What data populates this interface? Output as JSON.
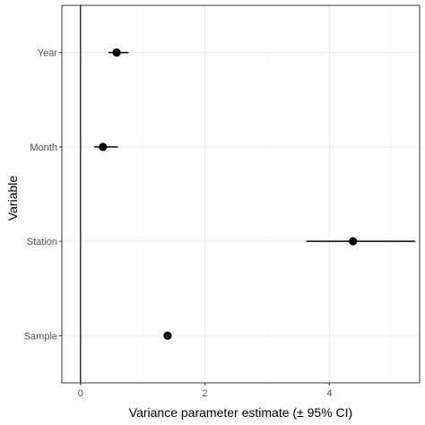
{
  "chart_data": {
    "type": "scatter",
    "subtype": "dot-and-whisker",
    "title": "",
    "xlabel": "Variance parameter estimate (± 95% CI)",
    "ylabel": "Variable",
    "xlim": [
      -0.3,
      5.45
    ],
    "xticks": [
      0,
      2,
      4
    ],
    "xtick_labels": [
      "0",
      "2",
      "4"
    ],
    "categories": [
      "Year",
      "Month",
      "Station",
      "Sample"
    ],
    "series": [
      {
        "values": [
          0.58,
          0.36,
          4.38,
          1.4
        ],
        "ci_low": [
          0.45,
          0.22,
          3.63,
          1.4
        ],
        "ci_high": [
          0.77,
          0.6,
          5.38,
          1.4
        ]
      }
    ],
    "reference_line_x": 0,
    "grid": true,
    "legend": "none",
    "colors": {
      "point": "#000000",
      "grid_major": "#ebebeb",
      "grid_minor": "#f5f5f5",
      "panel_border": "#333333"
    }
  }
}
